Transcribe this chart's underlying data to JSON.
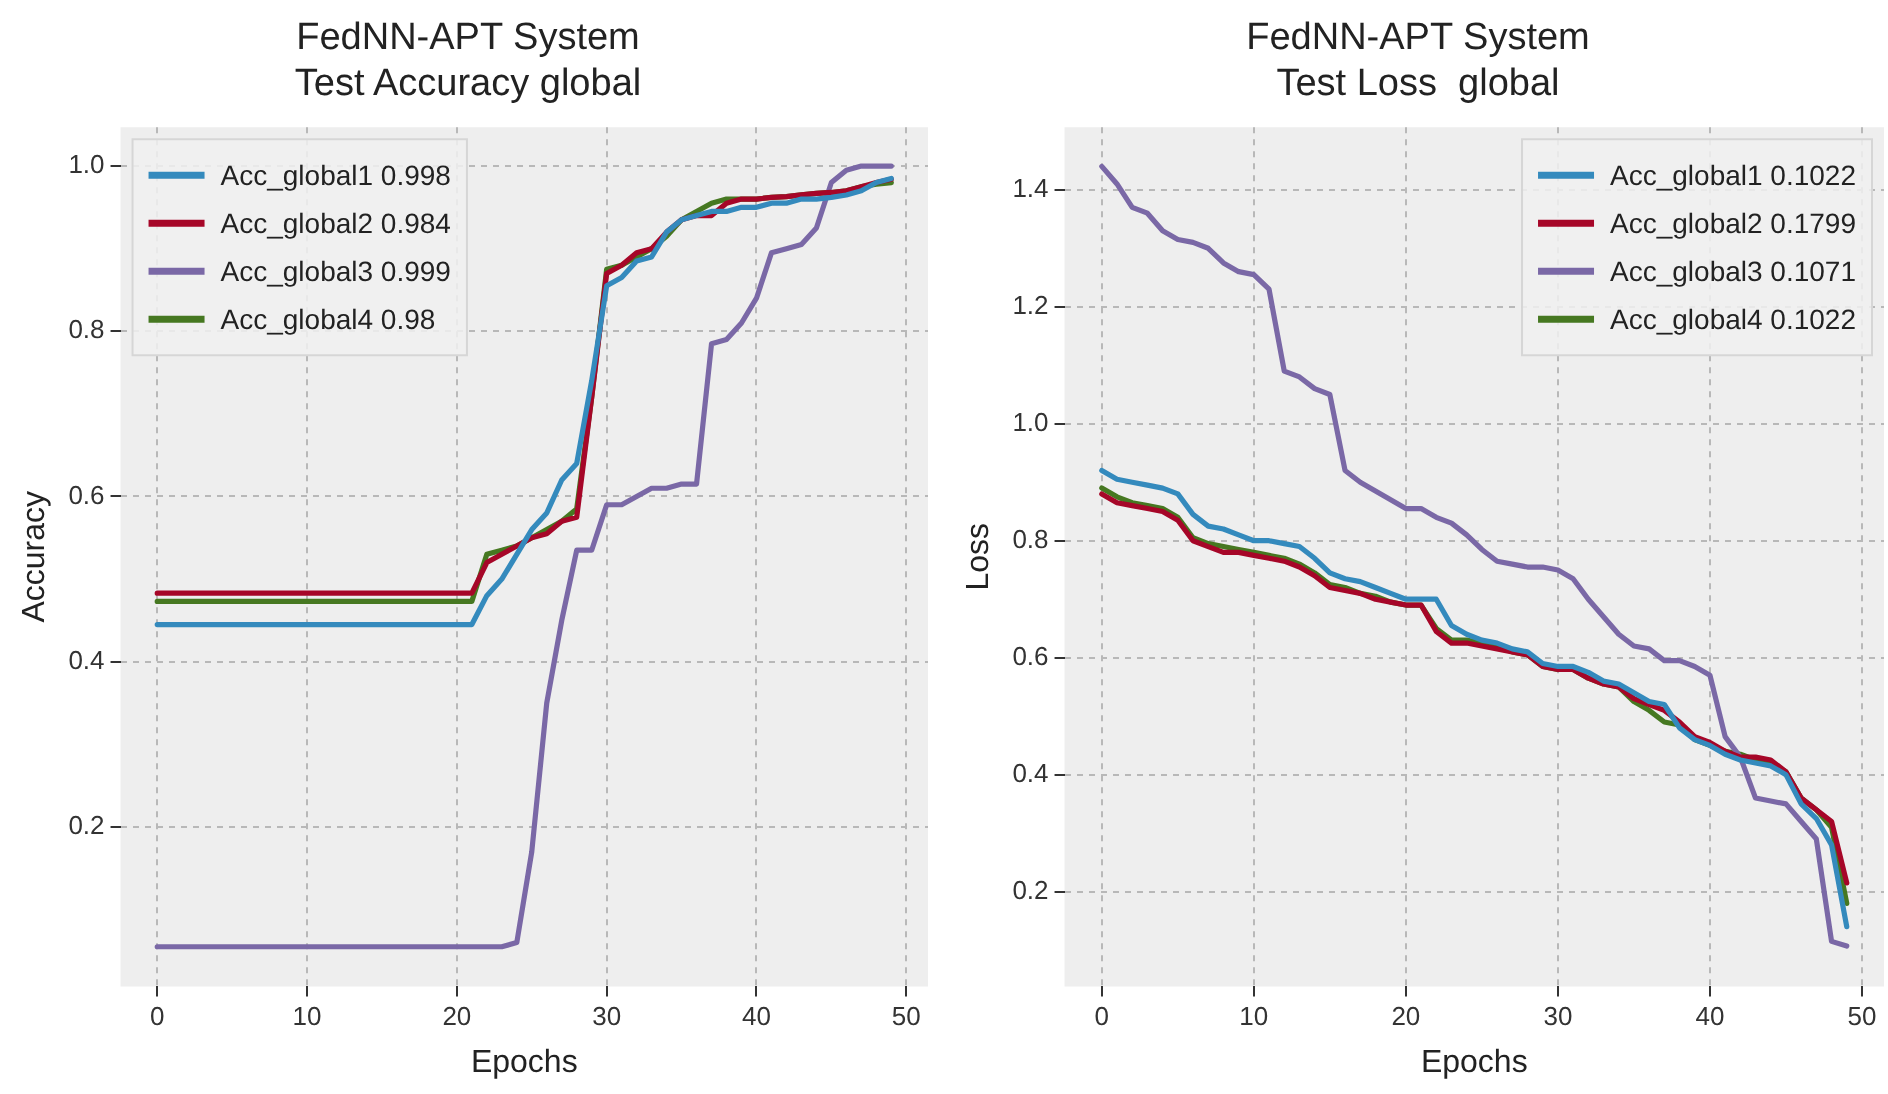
{
  "chart_data": [
    {
      "type": "line",
      "title": "FedNN-APT System\nTest Accuracy global",
      "xlabel": "Epochs",
      "ylabel": "Accuracy",
      "legend": "top left",
      "grid": true,
      "line_style": "solid",
      "marker": "none",
      "x": [
        0,
        1,
        2,
        3,
        4,
        5,
        6,
        7,
        8,
        9,
        10,
        11,
        12,
        13,
        14,
        15,
        16,
        17,
        18,
        19,
        20,
        21,
        22,
        23,
        24,
        25,
        26,
        27,
        28,
        29,
        30,
        31,
        32,
        33,
        34,
        35,
        36,
        37,
        38,
        39,
        40,
        41,
        42,
        43,
        44,
        45,
        46,
        47,
        48,
        49
      ],
      "xlim": [
        -2.45,
        51.45
      ],
      "xticks": [
        0,
        10,
        20,
        30,
        40,
        50
      ],
      "ylim": [
        0.007,
        1.047
      ],
      "yticks": [
        0.2,
        0.4,
        0.6,
        0.8,
        {
          "value": 1,
          "label": "1.0"
        }
      ],
      "series": [
        {
          "name": "Acc_global1 0.998",
          "color": "#348abd",
          "values": [
            0.445,
            0.445,
            0.445,
            0.445,
            0.445,
            0.445,
            0.445,
            0.445,
            0.445,
            0.445,
            0.445,
            0.445,
            0.445,
            0.445,
            0.445,
            0.445,
            0.445,
            0.445,
            0.445,
            0.445,
            0.445,
            0.445,
            0.48,
            0.5,
            0.53,
            0.56,
            0.58,
            0.62,
            0.64,
            0.74,
            0.855,
            0.865,
            0.885,
            0.89,
            0.92,
            0.935,
            0.94,
            0.945,
            0.945,
            0.95,
            0.95,
            0.955,
            0.955,
            0.96,
            0.96,
            0.962,
            0.965,
            0.97,
            0.98,
            0.985
          ]
        },
        {
          "name": "Acc_global2 0.984",
          "color": "#a60628",
          "values": [
            0.483,
            0.483,
            0.483,
            0.483,
            0.483,
            0.483,
            0.483,
            0.483,
            0.483,
            0.483,
            0.483,
            0.483,
            0.483,
            0.483,
            0.483,
            0.483,
            0.483,
            0.483,
            0.483,
            0.483,
            0.483,
            0.483,
            0.52,
            0.53,
            0.54,
            0.55,
            0.555,
            0.57,
            0.575,
            0.72,
            0.87,
            0.88,
            0.895,
            0.9,
            0.92,
            0.935,
            0.94,
            0.94,
            0.955,
            0.96,
            0.96,
            0.962,
            0.963,
            0.965,
            0.967,
            0.968,
            0.97,
            0.975,
            0.98,
            0.984
          ]
        },
        {
          "name": "Acc_global3 0.999",
          "color": "#7a68a6",
          "values": [
            0.055,
            0.055,
            0.055,
            0.055,
            0.055,
            0.055,
            0.055,
            0.055,
            0.055,
            0.055,
            0.055,
            0.055,
            0.055,
            0.055,
            0.055,
            0.055,
            0.055,
            0.055,
            0.055,
            0.055,
            0.055,
            0.055,
            0.055,
            0.055,
            0.06,
            0.17,
            0.35,
            0.45,
            0.535,
            0.535,
            0.59,
            0.59,
            0.6,
            0.61,
            0.61,
            0.615,
            0.615,
            0.785,
            0.79,
            0.81,
            0.84,
            0.895,
            0.9,
            0.905,
            0.925,
            0.98,
            0.995,
            1.0,
            1.0,
            1.0
          ]
        },
        {
          "name": "Acc_global4 0.98",
          "color": "#467821",
          "values": [
            0.473,
            0.473,
            0.473,
            0.473,
            0.473,
            0.473,
            0.473,
            0.473,
            0.473,
            0.473,
            0.473,
            0.473,
            0.473,
            0.473,
            0.473,
            0.473,
            0.473,
            0.473,
            0.473,
            0.473,
            0.473,
            0.473,
            0.53,
            0.535,
            0.54,
            0.55,
            0.56,
            0.57,
            0.585,
            0.72,
            0.875,
            0.88,
            0.89,
            0.9,
            0.915,
            0.935,
            0.945,
            0.955,
            0.96,
            0.96,
            0.96,
            0.962,
            0.963,
            0.965,
            0.967,
            0.968,
            0.97,
            0.975,
            0.978,
            0.98
          ]
        }
      ]
    },
    {
      "type": "line",
      "title": "FedNN-APT System\nTest Loss  global",
      "xlabel": "Epochs",
      "ylabel": "Loss",
      "legend": "top right",
      "grid": true,
      "line_style": "solid",
      "marker": "none",
      "x": [
        0,
        1,
        2,
        3,
        4,
        5,
        6,
        7,
        8,
        9,
        10,
        11,
        12,
        13,
        14,
        15,
        16,
        17,
        18,
        19,
        20,
        21,
        22,
        23,
        24,
        25,
        26,
        27,
        28,
        29,
        30,
        31,
        32,
        33,
        34,
        35,
        36,
        37,
        38,
        39,
        40,
        41,
        42,
        43,
        44,
        45,
        46,
        47,
        48,
        49
      ],
      "xlim": [
        -2.45,
        51.45
      ],
      "xticks": [
        0,
        10,
        20,
        30,
        40,
        50
      ],
      "ylim": [
        0.038,
        1.507
      ],
      "yticks": [
        0.2,
        0.4,
        0.6,
        0.8,
        {
          "value": 1,
          "label": "1.0"
        },
        1.2,
        1.4
      ],
      "series": [
        {
          "name": "Acc_global1 0.1022",
          "color": "#348abd",
          "values": [
            0.92,
            0.905,
            0.9,
            0.895,
            0.89,
            0.88,
            0.845,
            0.825,
            0.82,
            0.81,
            0.8,
            0.8,
            0.795,
            0.79,
            0.77,
            0.745,
            0.735,
            0.73,
            0.72,
            0.71,
            0.7,
            0.7,
            0.7,
            0.655,
            0.64,
            0.63,
            0.625,
            0.615,
            0.61,
            0.59,
            0.585,
            0.585,
            0.575,
            0.56,
            0.555,
            0.54,
            0.525,
            0.52,
            0.48,
            0.46,
            0.45,
            0.435,
            0.425,
            0.42,
            0.415,
            0.4,
            0.35,
            0.325,
            0.28,
            0.14
          ]
        },
        {
          "name": "Acc_global2 0.1799",
          "color": "#a60628",
          "values": [
            0.88,
            0.865,
            0.86,
            0.855,
            0.85,
            0.835,
            0.8,
            0.79,
            0.78,
            0.78,
            0.775,
            0.77,
            0.765,
            0.755,
            0.74,
            0.72,
            0.715,
            0.71,
            0.7,
            0.695,
            0.69,
            0.69,
            0.645,
            0.625,
            0.625,
            0.62,
            0.615,
            0.61,
            0.605,
            0.585,
            0.58,
            0.58,
            0.565,
            0.555,
            0.55,
            0.53,
            0.52,
            0.51,
            0.49,
            0.465,
            0.455,
            0.44,
            0.43,
            0.43,
            0.425,
            0.405,
            0.36,
            0.34,
            0.32,
            0.215
          ]
        },
        {
          "name": "Acc_global3 0.1071",
          "color": "#7a68a6",
          "values": [
            1.44,
            1.41,
            1.37,
            1.36,
            1.33,
            1.315,
            1.31,
            1.3,
            1.275,
            1.26,
            1.255,
            1.23,
            1.09,
            1.08,
            1.06,
            1.05,
            0.92,
            0.9,
            0.885,
            0.87,
            0.855,
            0.855,
            0.84,
            0.83,
            0.81,
            0.785,
            0.765,
            0.76,
            0.755,
            0.755,
            0.75,
            0.735,
            0.7,
            0.67,
            0.64,
            0.62,
            0.615,
            0.595,
            0.595,
            0.585,
            0.57,
            0.465,
            0.43,
            0.36,
            0.355,
            0.35,
            0.32,
            0.29,
            0.115,
            0.107
          ]
        },
        {
          "name": "Acc_global4 0.1022",
          "color": "#467821",
          "values": [
            0.89,
            0.875,
            0.865,
            0.86,
            0.855,
            0.84,
            0.805,
            0.795,
            0.79,
            0.785,
            0.78,
            0.775,
            0.77,
            0.76,
            0.745,
            0.725,
            0.72,
            0.71,
            0.705,
            0.695,
            0.69,
            0.69,
            0.65,
            0.63,
            0.63,
            0.625,
            0.62,
            0.61,
            0.605,
            0.585,
            0.58,
            0.58,
            0.565,
            0.555,
            0.55,
            0.525,
            0.51,
            0.49,
            0.485,
            0.46,
            0.45,
            0.44,
            0.435,
            0.425,
            0.42,
            0.405,
            0.36,
            0.34,
            0.31,
            0.18
          ]
        }
      ]
    }
  ]
}
